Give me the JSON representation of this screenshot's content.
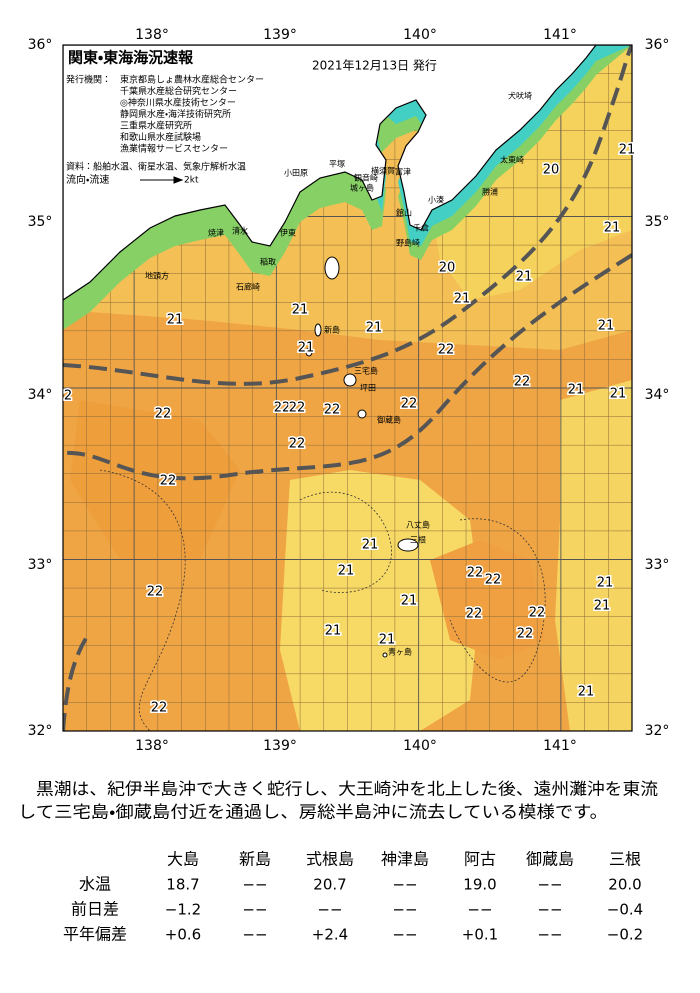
{
  "header": {
    "title": "関東・東海海況速報",
    "date": "2021年12月13日 発行",
    "issuer_label": "発行機関：",
    "issuers": [
      "東京都島しょ農林水産総合センター",
      "千葉県水産総合研究センター",
      "◎神奈川県水産技術センター",
      "静岡県水産・海洋技術研究所",
      "三重県水産研究所",
      "和歌山県水産試験場",
      "漁業情報サービスセンター"
    ],
    "sources": "資料：船舶水温、衛星水温、気象庁解析水温",
    "current_label": "流向・流速",
    "current_scale": "2kt"
  },
  "map": {
    "lon_labels": [
      "138°",
      "139°",
      "140°",
      "141°"
    ],
    "lat_labels": [
      "36°",
      "35°",
      "34°",
      "33°",
      "32°"
    ],
    "place_names": [
      "犬吠埼",
      "太東崎",
      "勝浦",
      "小湊",
      "館山",
      "千倉",
      "野島崎",
      "横須賀",
      "富津",
      "平塚",
      "観音崎",
      "城ヶ島",
      "小田原",
      "伊東",
      "清水",
      "焼津",
      "稲取",
      "石廊崎",
      "地頭方",
      "新島",
      "三宅島",
      "坪田",
      "御蔵島",
      "八丈島",
      "三根",
      "青ヶ島"
    ],
    "temperature_labels": [
      "21",
      "20",
      "21",
      "20",
      "21",
      "21",
      "21",
      "21",
      "21",
      "21",
      "22",
      "21",
      "22",
      "21",
      "21",
      "2",
      "22",
      "22",
      "22",
      "22",
      "22",
      "22",
      "22",
      "21",
      "21",
      "22",
      "22",
      "21",
      "22",
      "21",
      "21",
      "22",
      "22",
      "22",
      "21",
      "21",
      "21",
      "22"
    ]
  },
  "summary": {
    "lines": [
      "黒潮は、紀伊半島沖で大きく蛇行し、大王崎沖を北上した後、遠州灘沖を東流",
      "して三宅島・御蔵島付近を通過し、房総半島沖に流去している模様です。"
    ]
  },
  "table": {
    "columns": [
      "大島",
      "新島",
      "式根島",
      "神津島",
      "阿古",
      "御蔵島",
      "三根"
    ],
    "rows": [
      {
        "label": "水温",
        "values": [
          "18.7",
          "−−",
          "20.7",
          "−−",
          "19.0",
          "−−",
          "20.0"
        ]
      },
      {
        "label": "前日差",
        "values": [
          "−1.2",
          "−−",
          "−−",
          "−−",
          "−−",
          "−−",
          "−0.4"
        ]
      },
      {
        "label": "平年偏差",
        "values": [
          "+0.6",
          "−−",
          "+2.4",
          "−−",
          "+0.1",
          "−−",
          "−0.2"
        ]
      }
    ]
  }
}
